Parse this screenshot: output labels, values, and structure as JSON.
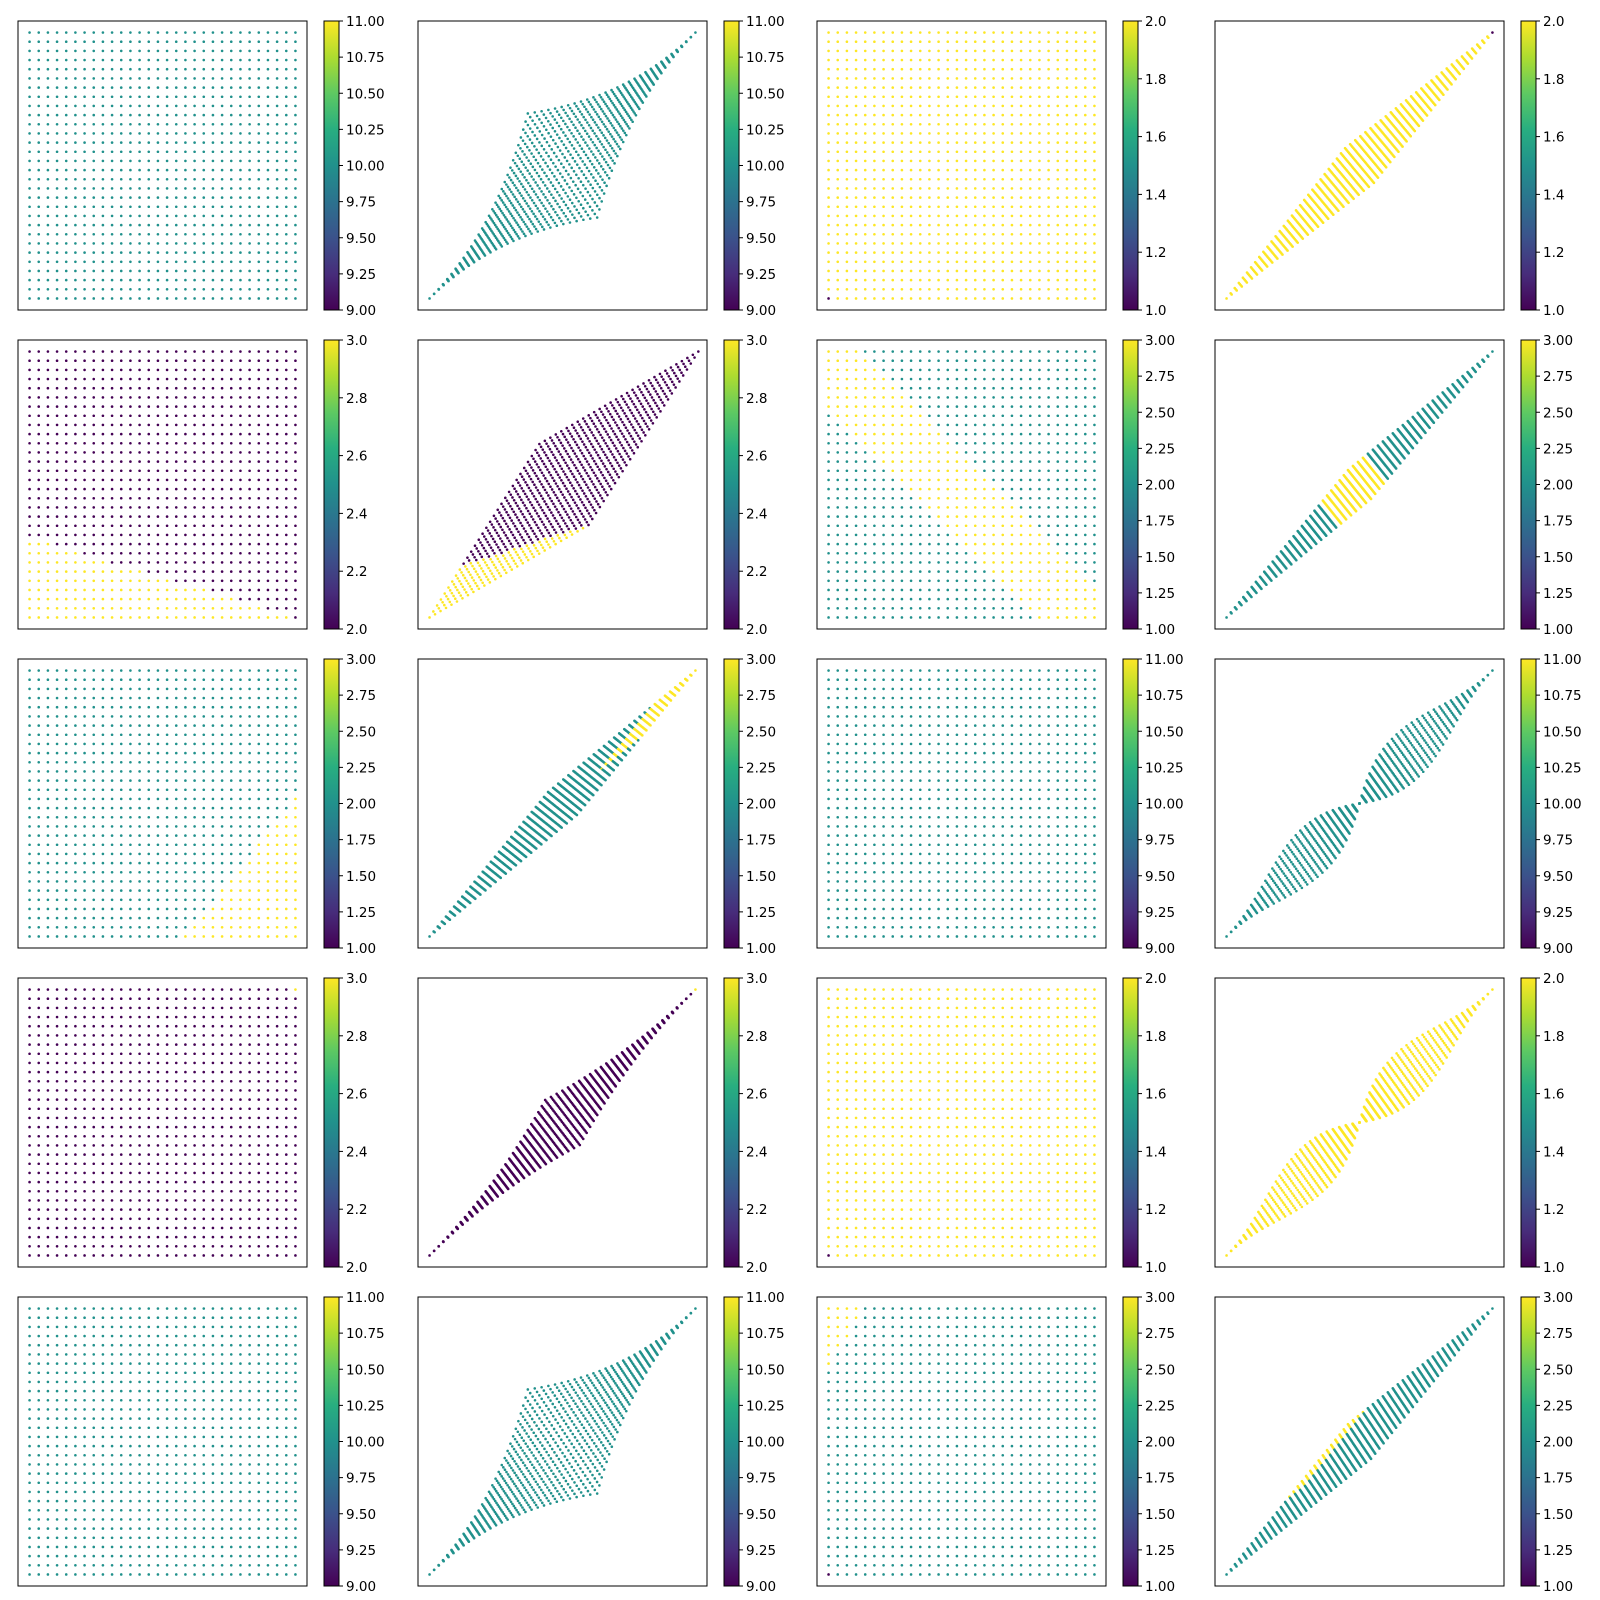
{
  "chart_data": [
    {
      "type": "scatter",
      "grid": false,
      "points": "grid-uniform",
      "colorbar": {
        "min": 9,
        "max": 11,
        "ticks": [
          "9.00",
          "9.25",
          "9.50",
          "9.75",
          "10.00",
          "10.25",
          "10.50",
          "10.75",
          "11.00"
        ]
      }
    },
    {
      "type": "scatter",
      "grid": false,
      "points": "transformed-fan-uniform",
      "colorbar": {
        "min": 9,
        "max": 11,
        "ticks": [
          "9.00",
          "9.25",
          "9.50",
          "9.75",
          "10.00",
          "10.25",
          "10.50",
          "10.75",
          "11.00"
        ]
      }
    },
    {
      "type": "scatter",
      "grid": false,
      "points": "grid-yellow",
      "colorbar": {
        "min": 1,
        "max": 2,
        "ticks": [
          "1.0",
          "1.2",
          "1.4",
          "1.6",
          "1.8",
          "2.0"
        ]
      }
    },
    {
      "type": "scatter",
      "grid": false,
      "points": "transformed-band-yellow",
      "colorbar": {
        "min": 1,
        "max": 2,
        "ticks": [
          "1.0",
          "1.2",
          "1.4",
          "1.6",
          "1.8",
          "2.0"
        ]
      }
    },
    {
      "type": "scatter",
      "grid": false,
      "points": "grid-two-region",
      "colorbar": {
        "min": 2,
        "max": 3,
        "ticks": [
          "2.0",
          "2.2",
          "2.4",
          "2.6",
          "2.8",
          "3.0"
        ]
      }
    },
    {
      "type": "scatter",
      "grid": false,
      "points": "transformed-parallelogram",
      "colorbar": {
        "min": 2,
        "max": 3,
        "ticks": [
          "2.0",
          "2.2",
          "2.4",
          "2.6",
          "2.8",
          "3.0"
        ]
      }
    },
    {
      "type": "scatter",
      "grid": false,
      "points": "grid-diagonal-band",
      "colorbar": {
        "min": 1,
        "max": 3,
        "ticks": [
          "1.00",
          "1.25",
          "1.50",
          "1.75",
          "2.00",
          "2.25",
          "2.50",
          "2.75",
          "3.00"
        ]
      }
    },
    {
      "type": "scatter",
      "grid": false,
      "points": "transformed-streaks",
      "colorbar": {
        "min": 1,
        "max": 3,
        "ticks": [
          "1.00",
          "1.25",
          "1.50",
          "1.75",
          "2.00",
          "2.25",
          "2.50",
          "2.75",
          "3.00"
        ]
      }
    },
    {
      "type": "scatter",
      "grid": false,
      "points": "grid-corner-triangle",
      "colorbar": {
        "min": 1,
        "max": 3,
        "ticks": [
          "1.00",
          "1.25",
          "1.50",
          "1.75",
          "2.00",
          "2.25",
          "2.50",
          "2.75",
          "3.00"
        ]
      }
    },
    {
      "type": "scatter",
      "grid": false,
      "points": "transformed-band-teal",
      "colorbar": {
        "min": 1,
        "max": 3,
        "ticks": [
          "1.00",
          "1.25",
          "1.50",
          "1.75",
          "2.00",
          "2.25",
          "2.50",
          "2.75",
          "3.00"
        ]
      }
    },
    {
      "type": "scatter",
      "grid": false,
      "points": "grid-uniform",
      "colorbar": {
        "min": 9,
        "max": 11,
        "ticks": [
          "9.00",
          "9.25",
          "9.50",
          "9.75",
          "10.00",
          "10.25",
          "10.50",
          "10.75",
          "11.00"
        ]
      }
    },
    {
      "type": "scatter",
      "grid": false,
      "points": "transformed-pinch-teal",
      "colorbar": {
        "min": 9,
        "max": 11,
        "ticks": [
          "9.00",
          "9.25",
          "9.50",
          "9.75",
          "10.00",
          "10.25",
          "10.50",
          "10.75",
          "11.00"
        ]
      }
    },
    {
      "type": "scatter",
      "grid": false,
      "points": "grid-purple",
      "colorbar": {
        "min": 2,
        "max": 3,
        "ticks": [
          "2.0",
          "2.2",
          "2.4",
          "2.6",
          "2.8",
          "3.0"
        ]
      }
    },
    {
      "type": "scatter",
      "grid": false,
      "points": "transformed-band-purple",
      "colorbar": {
        "min": 2,
        "max": 3,
        "ticks": [
          "2.0",
          "2.2",
          "2.4",
          "2.6",
          "2.8",
          "3.0"
        ]
      }
    },
    {
      "type": "scatter",
      "grid": false,
      "points": "grid-yellow",
      "colorbar": {
        "min": 1,
        "max": 2,
        "ticks": [
          "1.0",
          "1.2",
          "1.4",
          "1.6",
          "1.8",
          "2.0"
        ]
      }
    },
    {
      "type": "scatter",
      "grid": false,
      "points": "transformed-pinch-yellow",
      "colorbar": {
        "min": 1,
        "max": 2,
        "ticks": [
          "1.0",
          "1.2",
          "1.4",
          "1.6",
          "1.8",
          "2.0"
        ]
      }
    },
    {
      "type": "scatter",
      "grid": false,
      "points": "grid-uniform",
      "colorbar": {
        "min": 9,
        "max": 11,
        "ticks": [
          "9.00",
          "9.25",
          "9.50",
          "9.75",
          "10.00",
          "10.25",
          "10.50",
          "10.75",
          "11.00"
        ]
      }
    },
    {
      "type": "scatter",
      "grid": false,
      "points": "transformed-fan-uniform",
      "colorbar": {
        "min": 9,
        "max": 11,
        "ticks": [
          "9.00",
          "9.25",
          "9.50",
          "9.75",
          "10.00",
          "10.25",
          "10.50",
          "10.75",
          "11.00"
        ]
      }
    },
    {
      "type": "scatter",
      "grid": false,
      "points": "grid-top-left-triangle",
      "colorbar": {
        "min": 1,
        "max": 3,
        "ticks": [
          "1.00",
          "1.25",
          "1.50",
          "1.75",
          "2.00",
          "2.25",
          "2.50",
          "2.75",
          "3.00"
        ]
      }
    },
    {
      "type": "scatter",
      "grid": false,
      "points": "transformed-streaks-teal",
      "colorbar": {
        "min": 1,
        "max": 3,
        "ticks": [
          "1.00",
          "1.25",
          "1.50",
          "1.75",
          "2.00",
          "2.25",
          "2.50",
          "2.75",
          "3.00"
        ]
      }
    }
  ],
  "colors": {
    "purple": "#440154",
    "teal": "#21918c",
    "yellow": "#fde725",
    "axis": "#000000"
  }
}
